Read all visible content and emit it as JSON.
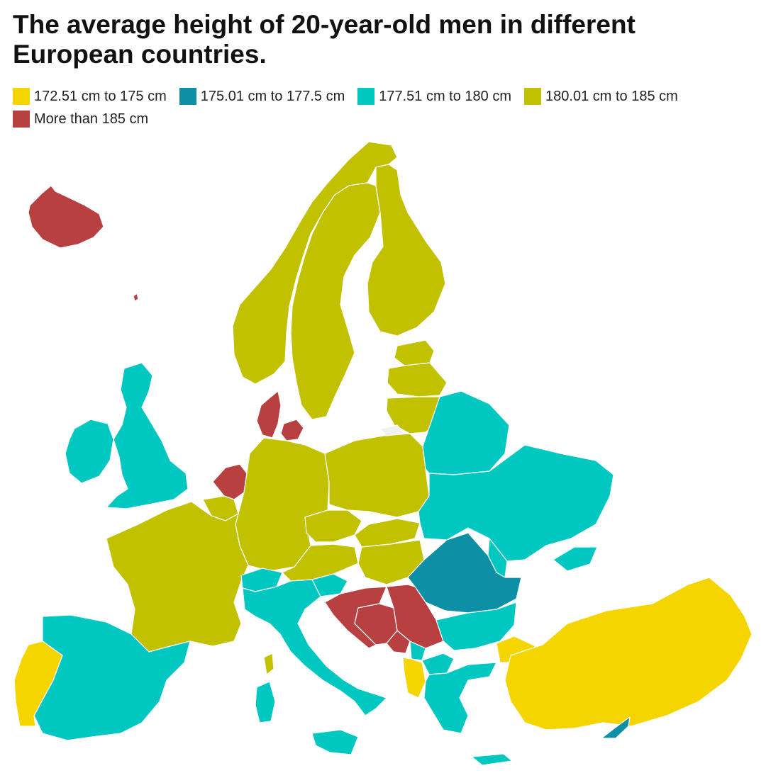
{
  "title": "The average height of 20-year-old men in different European countries.",
  "legend": [
    {
      "label": "172.51 cm to 175 cm",
      "color": "#f5d500"
    },
    {
      "label": "175.01 cm to 177.5 cm",
      "color": "#0d8fa6"
    },
    {
      "label": "177.51 cm to 180 cm",
      "color": "#00c8c0"
    },
    {
      "label": "180.01 cm to 185 cm",
      "color": "#c2c100"
    },
    {
      "label": "More than 185 cm",
      "color": "#b94040"
    }
  ],
  "colors": {
    "c1": "#f5d500",
    "c2": "#0d8fa6",
    "c3": "#00c8c0",
    "c4": "#c2c100",
    "c5": "#b94040"
  }
}
